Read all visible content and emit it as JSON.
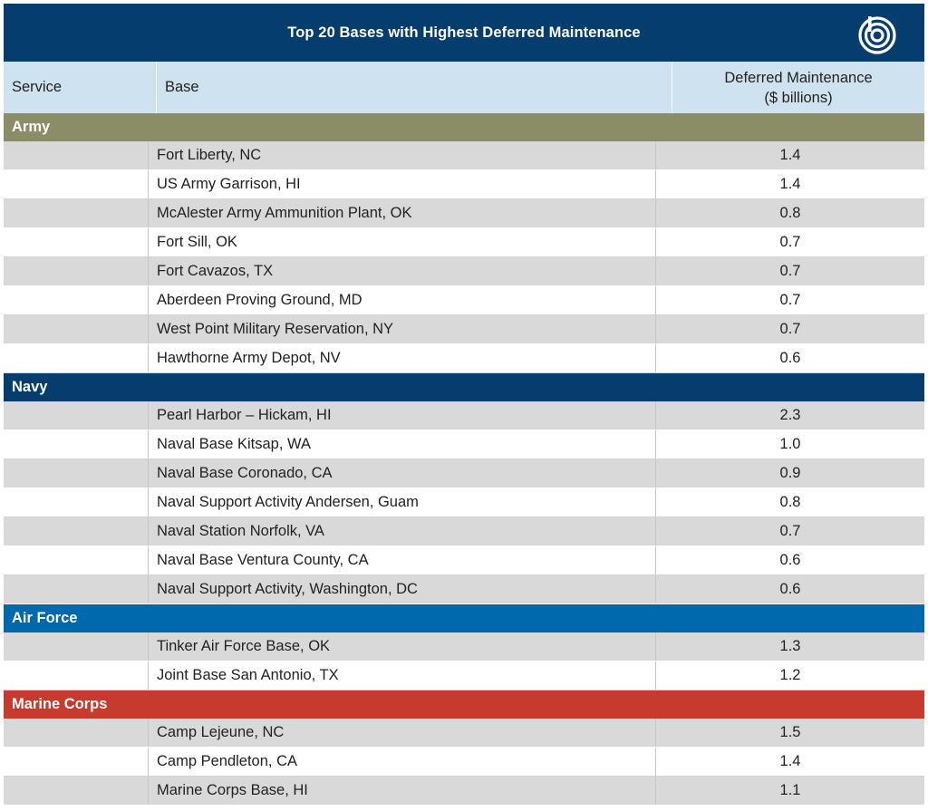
{
  "title": "Top 20 Bases with Highest Deferred Maintenance",
  "logo_icon": "concentric-circles-logo-icon",
  "colors": {
    "title_bg": "#053d6e",
    "header_bg": "#cfe2ef",
    "army": "#8a8d65",
    "navy": "#053d6e",
    "air_force": "#0068ad",
    "marine_corps": "#c73a2e",
    "row_shade": "#d9d9d9"
  },
  "columns": {
    "service": "Service",
    "base": "Base",
    "value_line1": "Deferred Maintenance",
    "value_line2": "($ billions)"
  },
  "chart_data": {
    "type": "table",
    "title": "Top 20 Bases with Highest Deferred Maintenance",
    "columns": [
      "Service",
      "Base",
      "Deferred Maintenance ($ billions)"
    ],
    "groups": [
      {
        "service": "Army",
        "rows": [
          {
            "base": "Fort Liberty, NC",
            "value": "1.4"
          },
          {
            "base": "US Army Garrison, HI",
            "value": "1.4"
          },
          {
            "base": "McAlester Army Ammunition Plant, OK",
            "value": "0.8"
          },
          {
            "base": "Fort Sill, OK",
            "value": "0.7"
          },
          {
            "base": "Fort Cavazos, TX",
            "value": "0.7"
          },
          {
            "base": "Aberdeen Proving Ground, MD",
            "value": "0.7"
          },
          {
            "base": "West Point Military Reservation, NY",
            "value": "0.7"
          },
          {
            "base": "Hawthorne Army Depot, NV",
            "value": "0.6"
          }
        ]
      },
      {
        "service": "Navy",
        "rows": [
          {
            "base": "Pearl Harbor – Hickam, HI",
            "value": "2.3"
          },
          {
            "base": "Naval Base Kitsap, WA",
            "value": "1.0"
          },
          {
            "base": "Naval Base Coronado, CA",
            "value": "0.9"
          },
          {
            "base": "Naval Support Activity Andersen, Guam",
            "value": "0.8"
          },
          {
            "base": "Naval Station Norfolk, VA",
            "value": "0.7"
          },
          {
            "base": "Naval Base Ventura County, CA",
            "value": "0.6"
          },
          {
            "base": "Naval Support Activity, Washington, DC",
            "value": "0.6"
          }
        ]
      },
      {
        "service": "Air Force",
        "rows": [
          {
            "base": "Tinker Air Force Base, OK",
            "value": "1.3"
          },
          {
            "base": "Joint Base San Antonio, TX",
            "value": "1.2"
          }
        ]
      },
      {
        "service": "Marine Corps",
        "rows": [
          {
            "base": "Camp Lejeune, NC",
            "value": "1.5"
          },
          {
            "base": "Camp Pendleton, CA",
            "value": "1.4"
          },
          {
            "base": "Marine Corps Base, HI",
            "value": "1.1"
          }
        ]
      }
    ]
  }
}
